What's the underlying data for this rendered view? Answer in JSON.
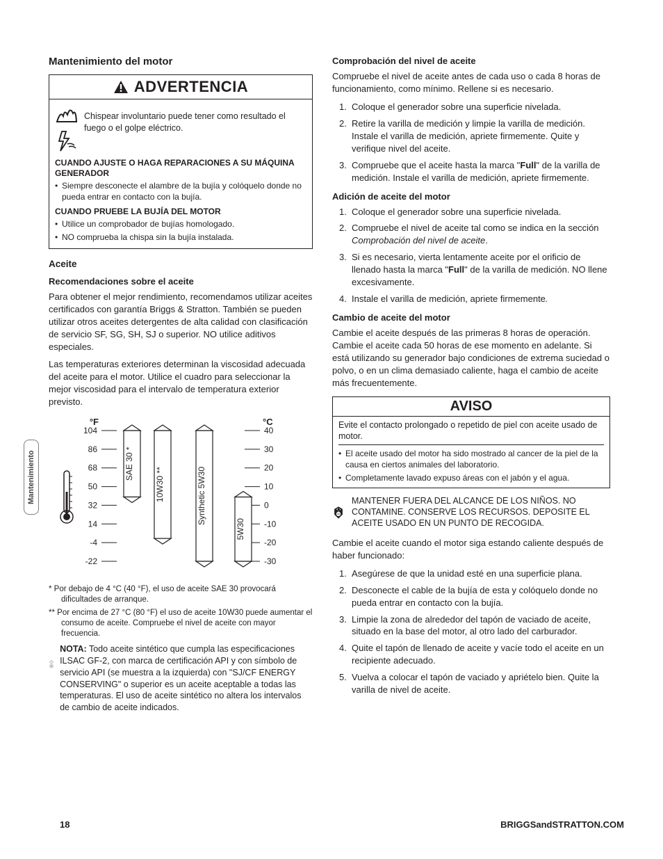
{
  "sideTab": "Mantenimiento",
  "pageNumber": "18",
  "siteUrl": "BRIGGSandSTRATTON.COM",
  "left": {
    "title": "Mantenimiento del motor",
    "warning": {
      "header": "ADVERTENCIA",
      "lead": "Chispear involuntario puede tener como resultado el fuego o el golpe eléctrico.",
      "sub1": "CUANDO AJUSTE O HAGA REPARACIONES A SU MÁQUINA GENERADOR",
      "b1": "Siempre desconecte el alambre de la bujía y colóquelo donde no pueda entrar en contacto con la bujía.",
      "sub2": "CUANDO PRUEBE LA BUJÍA DEL MOTOR",
      "b2": "Utilice un comprobador de bujías homologado.",
      "b3": "NO comprueba la chispa sin la bujía instalada."
    },
    "aceite": {
      "h": "Aceite",
      "rec_h": "Recomendaciones sobre el aceite",
      "p1": "Para obtener el mejor rendimiento, recomendamos utilizar aceites certificados con garantía Briggs & Stratton. También se pueden utilizar otros aceites detergentes de alta calidad con clasificación de servicio SF, SG, SH, SJ o superior. NO utilice aditivos especiales.",
      "p2": "Las temperaturas exteriores determinan la viscosidad adecuada del aceite para el motor. Utilice el cuadro para seleccionar la mejor viscosidad para el intervalo de temperatura exterior previsto.",
      "fn1": "*  Por debajo de 4 °C (40 °F), el uso de aceite SAE 30 provocará dificultades de arranque.",
      "fn2": "** Por encima de 27 °C (80 °F) el uso de aceite 10W30 puede aumentar el consumo de aceite. Compruebe el nivel de aceite con mayor frecuencia.",
      "note_label": "NOTA:",
      "note": " Todo aceite sintético que cumpla las especificaciones ILSAC GF-2, con marca de certificación API y con símbolo de servicio API (se muestra a la izquierda) con \"SJ/CF ENERGY CONSERVING\" o superior es un aceite aceptable a todas las temperaturas. El uso de aceite sintético no altera los intervalos de cambio de aceite indicados."
    }
  },
  "chart": {
    "f_label": "°F",
    "c_label": "°C",
    "f_ticks": [
      "104",
      "86",
      "68",
      "50",
      "32",
      "14",
      "-4",
      "-22"
    ],
    "c_ticks": [
      "40",
      "30",
      "20",
      "10",
      "0",
      "-10",
      "-20",
      "-30"
    ],
    "bars": [
      {
        "label": "SAE 30 *",
        "top_f": 104,
        "bot_f": 40
      },
      {
        "label": "10W30 **",
        "top_f": 104,
        "bot_f": 0
      },
      {
        "label": "Synthetic 5W30",
        "top_f": 104,
        "bot_f": -22
      },
      {
        "label": "5W30",
        "top_f": 40,
        "bot_f": -22
      }
    ],
    "colors": {
      "stroke": "#231f20",
      "bg": "#ffffff"
    }
  },
  "right": {
    "check_h": "Comprobación del nivel de aceite",
    "check_p": "Compruebe el nivel de aceite antes de cada uso o cada 8 horas de funcionamiento, como mínimo. Rellene si es necesario.",
    "check_li": [
      "Coloque el generador sobre una superficie nivelada.",
      "Retire la varilla de medición y limpie la varilla de medición. Instale el varilla de medición, apriete firmemente. Quite y verifique nivel del aceite.",
      "Compruebe que el aceite hasta la marca \"Full\" de la varilla de medición. Instale el varilla de medición, apriete firmemente."
    ],
    "add_h": "Adición de aceite del motor",
    "add_li": [
      "Coloque el generador sobre una superficie nivelada.",
      "Compruebe el nivel de aceite tal como se indica en la sección Comprobación del nivel de aceite.",
      "Si es necesario, vierta lentamente aceite por el orificio de llenado hasta la marca \"Full\" de la varilla de medición. NO llene excesivamente.",
      "Instale el varilla de medición, apriete firmemente."
    ],
    "change_h": "Cambio de aceite del motor",
    "change_p": "Cambie el aceite después de las primeras 8 horas de operación. Cambie el aceite cada 50 horas de ese momento en adelante. Si está utilizando su generador bajo condiciones de extrema suciedad o polvo, o en un clima demasiado caliente, haga el cambio de aceite más frecuentemente.",
    "aviso": {
      "h": "AVISO",
      "lead": "Evite el contacto prolongado o repetido de piel con aceite usado de motor.",
      "b1": "El aceite usado del motor ha sido mostrado al cancer de la piel de la causa en ciertos animales del laboratorio.",
      "b2": "Completamente lavado expuso áreas con el jabón y el agua."
    },
    "recycle": "MANTENER FUERA DEL ALCANCE DE LOS NIÑOS. NO CONTAMINE. CONSERVE LOS RECURSOS. DEPOSITE EL ACEITE USADO EN UN PUNTO DE RECOGIDA.",
    "change_p2": "Cambie el aceite cuando el motor siga estando caliente después de haber funcionado:",
    "change_li": [
      "Asegúrese de que la unidad esté en una superficie plana.",
      "Desconecte el cable de la bujía de esta y colóquelo donde no pueda entrar en contacto con la bujía.",
      "Limpie la zona de alrededor del tapón de vaciado de aceite, situado en la base del motor, al otro lado del carburador.",
      "Quite el tapón de llenado de aceite y vacíe todo el aceite en un recipiente adecuado.",
      "Vuelva a colocar el tapón de vaciado y apriételo bien. Quite la varilla de nivel de aceite."
    ]
  }
}
